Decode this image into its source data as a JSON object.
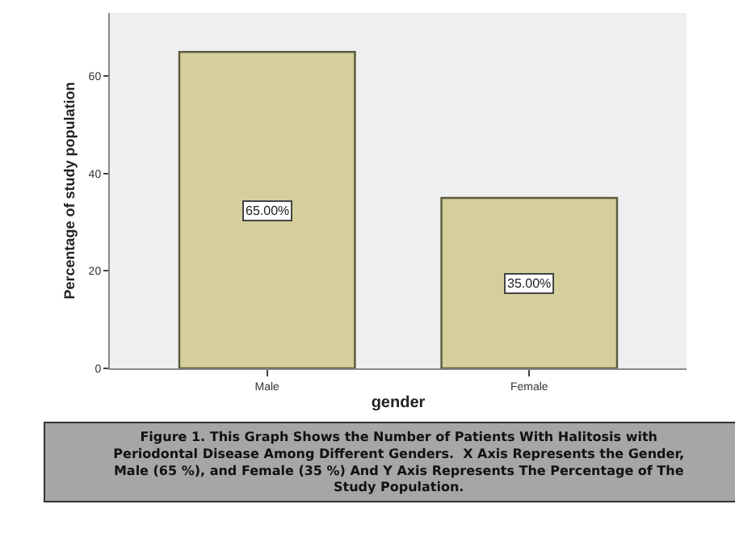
{
  "chart_data": {
    "type": "bar",
    "categories": [
      "Male",
      "Female"
    ],
    "values": [
      65,
      35
    ],
    "value_labels": [
      "65.00%",
      "35.00%"
    ],
    "color": "#d5cf9c",
    "xlabel": "gender",
    "ylabel": "Percentage of study population",
    "ylim": [
      0,
      73
    ],
    "yticks": [
      0,
      20,
      40,
      60
    ],
    "grid": false,
    "legend": false,
    "annotations": [
      "Figure 1. This Graph Shows the Number of Patients With Halitosis with Periodontal Disease Among Different Genders.  X Axis Represents the Gender, Male (65 %), and Female (35 %) And Y Axis Represents The Percentage of The Study Population."
    ]
  }
}
